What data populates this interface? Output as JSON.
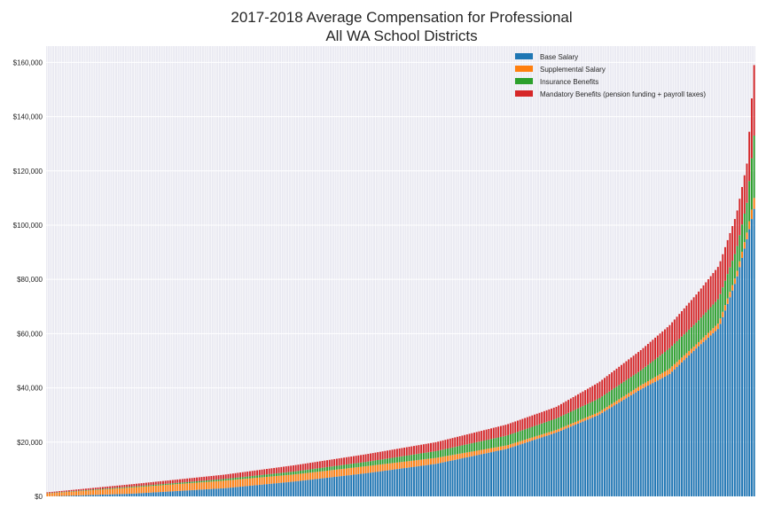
{
  "chart_data": {
    "type": "bar",
    "stacked": true,
    "title": "2017-2018 Average Compensation for Professional",
    "subtitle": "All WA School Districts",
    "xlabel": "",
    "ylabel": "",
    "ylim": [
      0,
      166000
    ],
    "yticks": [
      0,
      20000,
      40000,
      60000,
      80000,
      100000,
      120000,
      140000,
      160000
    ],
    "ytick_labels": [
      "$0",
      "$20,000",
      "$40,000",
      "$60,000",
      "$80,000",
      "$100,000",
      "$120,000",
      "$140,000",
      "$160,000"
    ],
    "grid": true,
    "legend_position": "top-right",
    "n_categories": 294,
    "anchors": [
      {
        "rank": 0.0,
        "total": 1500,
        "base": 0,
        "supplemental": 1100,
        "insurance": 100,
        "mandatory": 300
      },
      {
        "rank": 0.12,
        "total": 4500,
        "base": 1000,
        "supplemental": 2300,
        "insurance": 300,
        "mandatory": 900
      },
      {
        "rank": 0.25,
        "total": 8000,
        "base": 3000,
        "supplemental": 2800,
        "insurance": 600,
        "mandatory": 1600
      },
      {
        "rank": 0.35,
        "total": 11500,
        "base": 5500,
        "supplemental": 2600,
        "insurance": 1100,
        "mandatory": 2300
      },
      {
        "rank": 0.45,
        "total": 15500,
        "base": 8500,
        "supplemental": 2600,
        "insurance": 1600,
        "mandatory": 2800
      },
      {
        "rank": 0.55,
        "total": 20000,
        "base": 12000,
        "supplemental": 2200,
        "insurance": 2500,
        "mandatory": 3300
      },
      {
        "rank": 0.65,
        "total": 26500,
        "base": 17500,
        "supplemental": 1300,
        "insurance": 3600,
        "mandatory": 4100
      },
      {
        "rank": 0.72,
        "total": 33000,
        "base": 23500,
        "supplemental": 1000,
        "insurance": 4200,
        "mandatory": 4300
      },
      {
        "rank": 0.78,
        "total": 42000,
        "base": 30000,
        "supplemental": 1000,
        "insurance": 5000,
        "mandatory": 6000
      },
      {
        "rank": 0.84,
        "total": 54000,
        "base": 39500,
        "supplemental": 1500,
        "insurance": 5500,
        "mandatory": 7500
      },
      {
        "rank": 0.88,
        "total": 63000,
        "base": 45000,
        "supplemental": 2000,
        "insurance": 7500,
        "mandatory": 8500
      },
      {
        "rank": 0.92,
        "total": 75000,
        "base": 55000,
        "supplemental": 1500,
        "insurance": 8000,
        "mandatory": 10500
      },
      {
        "rank": 0.95,
        "total": 85000,
        "base": 62000,
        "supplemental": 2000,
        "insurance": 9000,
        "mandatory": 12000
      },
      {
        "rank": 0.975,
        "total": 104000,
        "base": 80000,
        "supplemental": 2000,
        "insurance": 9000,
        "mandatory": 13000
      },
      {
        "rank": 0.99,
        "total": 123000,
        "base": 95000,
        "supplemental": 2500,
        "insurance": 11000,
        "mandatory": 14500
      },
      {
        "rank": 1.0,
        "total": 159000,
        "base": 106000,
        "supplemental": 4000,
        "insurance": 23000,
        "mandatory": 26000
      }
    ],
    "series": [
      {
        "name": "Base Salary",
        "color": "#1f77b4"
      },
      {
        "name": "Supplemental Salary",
        "color": "#ff7f0e"
      },
      {
        "name": "Insurance Benefits",
        "color": "#2ca02c"
      },
      {
        "name": "Mandatory Benefits (pension funding + payroll taxes)",
        "color": "#d62728"
      }
    ]
  }
}
